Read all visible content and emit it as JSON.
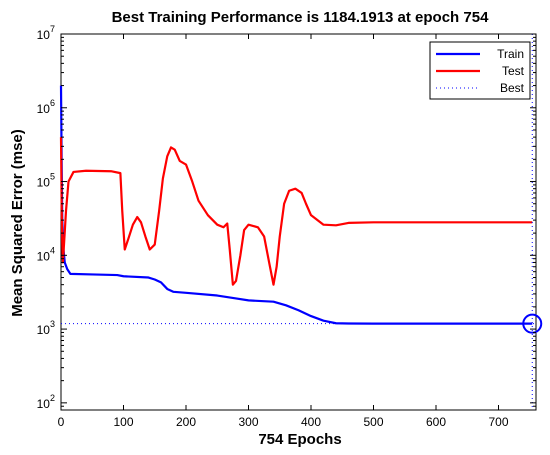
{
  "chart_data": {
    "type": "line",
    "title": "Best Training Performance is 1184.1913 at epoch 754",
    "xlabel": "754 Epochs",
    "ylabel": "Mean Squared Error  (mse)",
    "yscale": "log",
    "xlim": [
      0,
      760
    ],
    "ylim": [
      80,
      10000000
    ],
    "x_ticks": [
      0,
      100,
      200,
      300,
      400,
      500,
      600,
      700
    ],
    "y_ticks": [
      {
        "base": "10",
        "exp": "2",
        "value": 100
      },
      {
        "base": "10",
        "exp": "3",
        "value": 1000
      },
      {
        "base": "10",
        "exp": "4",
        "value": 10000
      },
      {
        "base": "10",
        "exp": "5",
        "value": 100000
      },
      {
        "base": "10",
        "exp": "6",
        "value": 1000000
      },
      {
        "base": "10",
        "exp": "7",
        "value": 10000000
      }
    ],
    "grid": false,
    "legend": {
      "position": "top-right",
      "entries": [
        {
          "label": "Train",
          "color": "#0000ff",
          "style": "solid"
        },
        {
          "label": "Test",
          "color": "#ff0000",
          "style": "solid"
        },
        {
          "label": "Best",
          "color": "#0000ff",
          "style": "dotted"
        }
      ]
    },
    "series": [
      {
        "name": "Train",
        "color": "#0000ff",
        "points": [
          [
            0,
            2000000
          ],
          [
            1,
            200000
          ],
          [
            2,
            30000
          ],
          [
            4,
            12000
          ],
          [
            6,
            8000
          ],
          [
            10,
            6500
          ],
          [
            15,
            5600
          ],
          [
            50,
            5500
          ],
          [
            90,
            5400
          ],
          [
            100,
            5200
          ],
          [
            140,
            5000
          ],
          [
            150,
            4700
          ],
          [
            160,
            4300
          ],
          [
            170,
            3500
          ],
          [
            180,
            3200
          ],
          [
            200,
            3100
          ],
          [
            250,
            2850
          ],
          [
            280,
            2600
          ],
          [
            300,
            2450
          ],
          [
            340,
            2350
          ],
          [
            360,
            2100
          ],
          [
            380,
            1800
          ],
          [
            400,
            1500
          ],
          [
            420,
            1300
          ],
          [
            440,
            1200
          ],
          [
            460,
            1190
          ],
          [
            500,
            1186
          ],
          [
            754,
            1184.1913
          ]
        ]
      },
      {
        "name": "Test",
        "color": "#ff0000",
        "points": [
          [
            0,
            400000
          ],
          [
            1,
            50000
          ],
          [
            2,
            15000
          ],
          [
            3,
            8000
          ],
          [
            5,
            15000
          ],
          [
            8,
            40000
          ],
          [
            12,
            100000
          ],
          [
            20,
            135000
          ],
          [
            40,
            140000
          ],
          [
            80,
            138000
          ],
          [
            95,
            130000
          ],
          [
            98,
            40000
          ],
          [
            102,
            12000
          ],
          [
            108,
            17000
          ],
          [
            115,
            26000
          ],
          [
            122,
            33000
          ],
          [
            128,
            28000
          ],
          [
            135,
            18000
          ],
          [
            142,
            12000
          ],
          [
            150,
            14000
          ],
          [
            157,
            40000
          ],
          [
            163,
            110000
          ],
          [
            170,
            220000
          ],
          [
            176,
            290000
          ],
          [
            182,
            270000
          ],
          [
            190,
            190000
          ],
          [
            200,
            170000
          ],
          [
            210,
            100000
          ],
          [
            220,
            55000
          ],
          [
            235,
            35000
          ],
          [
            250,
            26000
          ],
          [
            260,
            24000
          ],
          [
            266,
            27000
          ],
          [
            270,
            12000
          ],
          [
            275,
            4000
          ],
          [
            280,
            4500
          ],
          [
            287,
            10000
          ],
          [
            293,
            22000
          ],
          [
            300,
            26000
          ],
          [
            315,
            24000
          ],
          [
            325,
            18000
          ],
          [
            333,
            8000
          ],
          [
            340,
            4000
          ],
          [
            345,
            7000
          ],
          [
            350,
            18000
          ],
          [
            357,
            50000
          ],
          [
            365,
            75000
          ],
          [
            375,
            80000
          ],
          [
            385,
            70000
          ],
          [
            392,
            50000
          ],
          [
            400,
            35000
          ],
          [
            420,
            26000
          ],
          [
            440,
            25500
          ],
          [
            460,
            27500
          ],
          [
            500,
            28000
          ],
          [
            600,
            28000
          ],
          [
            754,
            28000
          ]
        ]
      }
    ],
    "best": {
      "epoch": 754,
      "value": 1184.1913,
      "color": "#0000ff"
    }
  }
}
